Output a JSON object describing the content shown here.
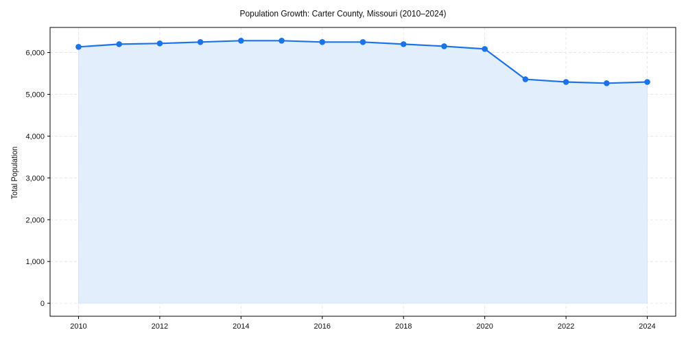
{
  "chart_data": {
    "type": "area",
    "title": "Population Growth: Carter County, Missouri (2010–2024)",
    "xlabel": "",
    "ylabel": "Total Population",
    "x": [
      2010,
      2011,
      2012,
      2013,
      2014,
      2015,
      2016,
      2017,
      2018,
      2019,
      2020,
      2021,
      2022,
      2023,
      2024
    ],
    "series": [
      {
        "name": "Total Population",
        "values": [
          6135,
          6200,
          6217,
          6250,
          6283,
          6283,
          6250,
          6250,
          6200,
          6150,
          6085,
          5360,
          5295,
          5265,
          5295
        ],
        "color": "#1a73e8",
        "fill": "#e3eefd"
      }
    ],
    "xticks": [
      "2010",
      "2012",
      "2014",
      "2016",
      "2018",
      "2020",
      "2022",
      "2024"
    ],
    "yticks": [
      "0",
      "1,000",
      "2,000",
      "3,000",
      "4,000",
      "5,000",
      "6,000"
    ],
    "xlim": [
      2009.3,
      2024.7
    ],
    "ylim": [
      -310,
      6600
    ],
    "grid": true,
    "legend": "none"
  }
}
